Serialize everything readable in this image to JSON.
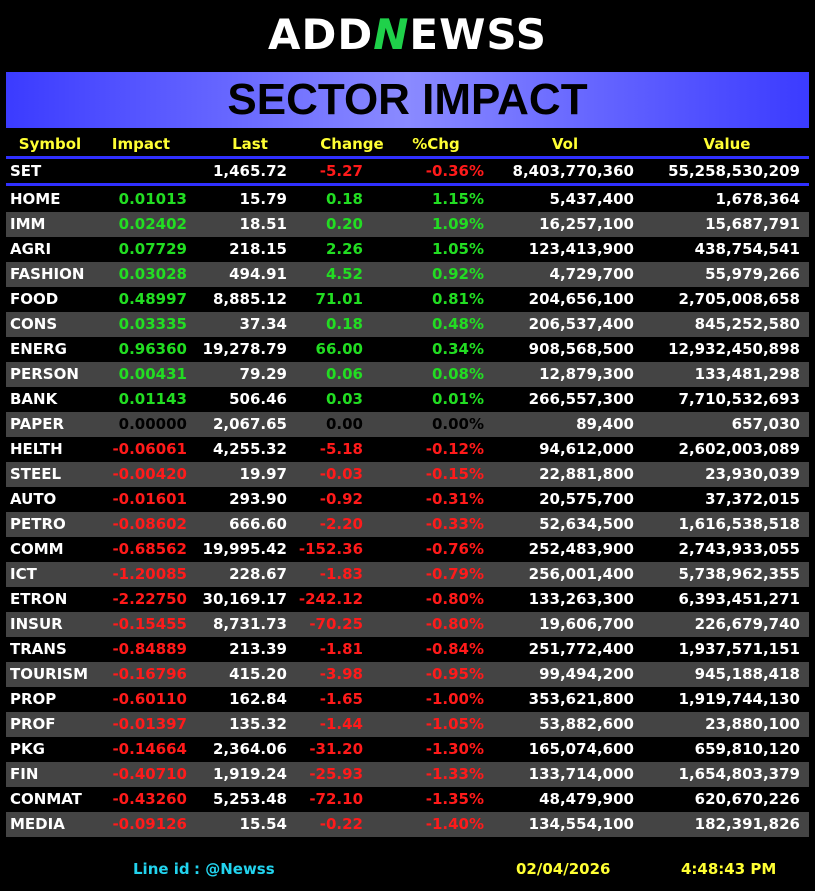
{
  "header": {
    "logo": [
      "ADD",
      "N",
      "EWSS"
    ],
    "title": "SECTOR IMPACT"
  },
  "table": {
    "columns": [
      "Symbol",
      "Impact",
      "Last",
      "Change",
      "%Chg",
      "Vol",
      "Value"
    ],
    "index_row": [
      "SET",
      null,
      "1,465.72",
      "-5.27",
      "-0.36%",
      "8,403,770,360",
      "55,258,530,209"
    ],
    "rows": [
      [
        "HOME",
        "0.01013",
        "15.79",
        "0.18",
        "1.15%",
        "5,437,400",
        "1,678,364"
      ],
      [
        "IMM",
        "0.02402",
        "18.51",
        "0.20",
        "1.09%",
        "16,257,100",
        "15,687,791"
      ],
      [
        "AGRI",
        "0.07729",
        "218.15",
        "2.26",
        "1.05%",
        "123,413,900",
        "438,754,541"
      ],
      [
        "FASHION",
        "0.03028",
        "494.91",
        "4.52",
        "0.92%",
        "4,729,700",
        "55,979,266"
      ],
      [
        "FOOD",
        "0.48997",
        "8,885.12",
        "71.01",
        "0.81%",
        "204,656,100",
        "2,705,008,658"
      ],
      [
        "CONS",
        "0.03335",
        "37.34",
        "0.18",
        "0.48%",
        "206,537,400",
        "845,252,580"
      ],
      [
        "ENERG",
        "0.96360",
        "19,278.79",
        "66.00",
        "0.34%",
        "908,568,500",
        "12,932,450,898"
      ],
      [
        "PERSON",
        "0.00431",
        "79.29",
        "0.06",
        "0.08%",
        "12,879,300",
        "133,481,298"
      ],
      [
        "BANK",
        "0.01143",
        "506.46",
        "0.03",
        "0.01%",
        "266,557,300",
        "7,710,532,693"
      ],
      [
        "PAPER",
        "0.00000",
        "2,067.65",
        "0.00",
        "0.00%",
        "89,400",
        "657,030"
      ],
      [
        "HELTH",
        "-0.06061",
        "4,255.32",
        "-5.18",
        "-0.12%",
        "94,612,000",
        "2,602,003,089"
      ],
      [
        "STEEL",
        "-0.00420",
        "19.97",
        "-0.03",
        "-0.15%",
        "22,881,800",
        "23,930,039"
      ],
      [
        "AUTO",
        "-0.01601",
        "293.90",
        "-0.92",
        "-0.31%",
        "20,575,700",
        "37,372,015"
      ],
      [
        "PETRO",
        "-0.08602",
        "666.60",
        "-2.20",
        "-0.33%",
        "52,634,500",
        "1,616,538,518"
      ],
      [
        "COMM",
        "-0.68562",
        "19,995.42",
        "-152.36",
        "-0.76%",
        "252,483,900",
        "2,743,933,055"
      ],
      [
        "ICT",
        "-1.20085",
        "228.67",
        "-1.83",
        "-0.79%",
        "256,001,400",
        "5,738,962,355"
      ],
      [
        "ETRON",
        "-2.22750",
        "30,169.17",
        "-242.12",
        "-0.80%",
        "133,263,300",
        "6,393,451,271"
      ],
      [
        "INSUR",
        "-0.15455",
        "8,731.73",
        "-70.25",
        "-0.80%",
        "19,606,700",
        "226,679,740"
      ],
      [
        "TRANS",
        "-0.84889",
        "213.39",
        "-1.81",
        "-0.84%",
        "251,772,400",
        "1,937,571,151"
      ],
      [
        "TOURISM",
        "-0.16796",
        "415.20",
        "-3.98",
        "-0.95%",
        "99,494,200",
        "945,188,418"
      ],
      [
        "PROP",
        "-0.60110",
        "162.84",
        "-1.65",
        "-1.00%",
        "353,621,800",
        "1,919,744,130"
      ],
      [
        "PROF",
        "-0.01397",
        "135.32",
        "-1.44",
        "-1.05%",
        "53,882,600",
        "23,880,100"
      ],
      [
        "PKG",
        "-0.14664",
        "2,364.06",
        "-31.20",
        "-1.30%",
        "165,074,600",
        "659,810,120"
      ],
      [
        "FIN",
        "-0.40710",
        "1,919.24",
        "-25.93",
        "-1.33%",
        "133,714,000",
        "1,654,803,379"
      ],
      [
        "CONMAT",
        "-0.43260",
        "5,253.48",
        "-72.10",
        "-1.35%",
        "48,479,900",
        "620,670,226"
      ],
      [
        "MEDIA",
        "-0.09126",
        "15.54",
        "-0.22",
        "-1.40%",
        "134,554,100",
        "182,391,826"
      ]
    ]
  },
  "footer": {
    "line_id_label": "Line id",
    "line_id": ": @Newss",
    "date": "02/04/2026",
    "time": "4:48:43 PM"
  }
}
